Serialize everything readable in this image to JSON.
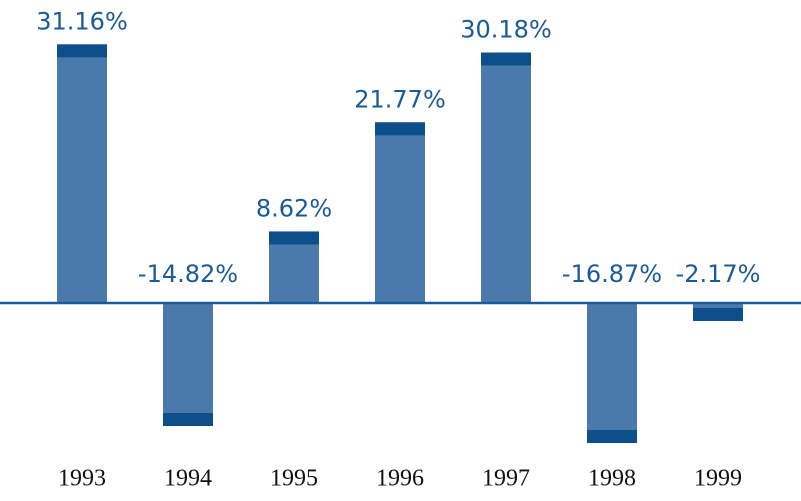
{
  "chart_data": {
    "type": "bar",
    "categories": [
      "1993",
      "1994",
      "1995",
      "1996",
      "1997",
      "1998",
      "1999"
    ],
    "values": [
      31.16,
      -14.82,
      8.62,
      21.77,
      30.18,
      -16.87,
      -2.17
    ],
    "value_labels": [
      "31.16%",
      "-14.82%",
      "8.62%",
      "21.77%",
      "30.18%",
      "-16.87%",
      "-2.17%"
    ],
    "color": "#4a7aab",
    "cap_color": "#0d4f8b"
  }
}
